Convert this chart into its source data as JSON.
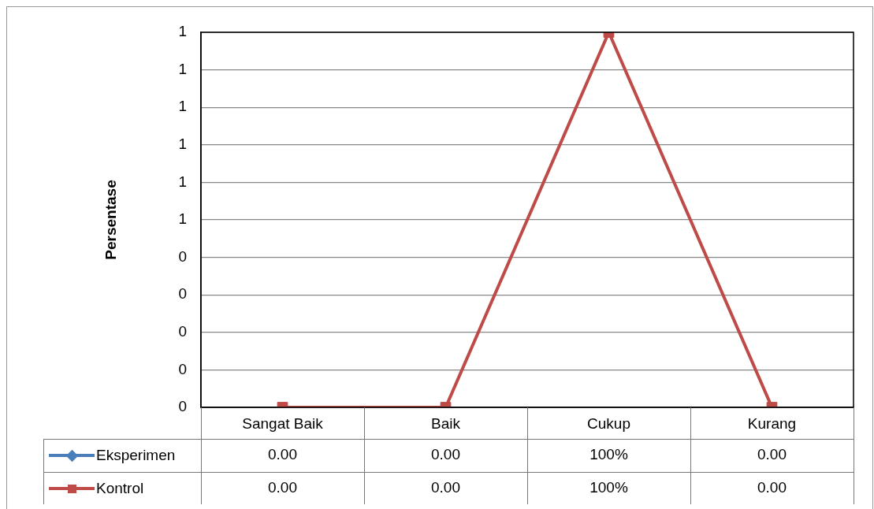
{
  "chart_data": {
    "type": "line",
    "ylabel": "Persentase",
    "categories": [
      "Sangat Baik",
      "Baik",
      "Cukup",
      "Kurang"
    ],
    "ylim": [
      0,
      1
    ],
    "yticks": [
      0,
      {
        "value": 0.1,
        "label": "0"
      },
      {
        "value": 0.2,
        "label": "0"
      },
      {
        "value": 0.3,
        "label": "0"
      },
      {
        "value": 0.4,
        "label": "0"
      },
      {
        "value": 0.5,
        "label": "1"
      },
      {
        "value": 0.6,
        "label": "1"
      },
      {
        "value": 0.7,
        "label": "1"
      },
      {
        "value": 0.8,
        "label": "1"
      },
      {
        "value": 0.9,
        "label": "1"
      },
      1
    ],
    "grid": "y",
    "legend": "bottom",
    "line_style": "solid",
    "series": [
      {
        "name": "Eksperimen",
        "color": "#4a7ebb",
        "marker": "diamond",
        "values": [
          null,
          null,
          null,
          null
        ],
        "value_labels": [
          "0.00",
          "0.00",
          "100%",
          "0.00"
        ]
      },
      {
        "name": "Kontrol",
        "color": "#be4b48",
        "marker": "square",
        "values": [
          0,
          0,
          1,
          0
        ],
        "value_labels": [
          "0.00",
          "0.00",
          "100%",
          "0.00"
        ]
      }
    ]
  }
}
